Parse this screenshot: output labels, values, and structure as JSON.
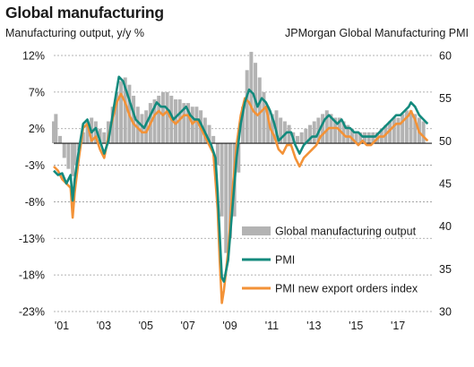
{
  "chart_data": {
    "type": "line",
    "title": "Global manufacturing",
    "left_axis_label": "Manufacturing output, y/y %",
    "right_axis_label": "JPMorgan Global Manufacturing PMI",
    "left_ylim": [
      -23,
      12
    ],
    "left_ticks": [
      "12%",
      "7%",
      "2%",
      "-3%",
      "-8%",
      "-13%",
      "-18%",
      "-23%"
    ],
    "left_tick_values": [
      12,
      7,
      2,
      -3,
      -8,
      -13,
      -18,
      -23
    ],
    "right_ylim": [
      30,
      60
    ],
    "right_ticks": [
      "60",
      "55",
      "50",
      "45",
      "40",
      "35",
      "30"
    ],
    "right_tick_values": [
      60,
      55,
      50,
      45,
      40,
      35,
      30
    ],
    "xlim": [
      2001.0,
      2019.0
    ],
    "x_ticks": [
      "'01",
      "'03",
      "'05",
      "'07",
      "'09",
      "'11",
      "'13",
      "'15",
      "'17"
    ],
    "x_tick_values": [
      2001,
      2003,
      2005,
      2007,
      2009,
      2011,
      2013,
      2015,
      2017
    ],
    "gridlines": "horizontal dashed",
    "legend_position": "lower-right",
    "series": [
      {
        "name": "Global manufacturing output",
        "kind": "bar",
        "axis": "left",
        "color": "#b3b3b3",
        "points": [
          [
            2001.0,
            3.0
          ],
          [
            2001.1,
            4.0
          ],
          [
            2001.3,
            1.0
          ],
          [
            2001.5,
            -2.0
          ],
          [
            2001.7,
            -3.5
          ],
          [
            2001.9,
            -4.5
          ],
          [
            2002.0,
            -3.0
          ],
          [
            2002.2,
            -1.0
          ],
          [
            2002.4,
            1.5
          ],
          [
            2002.6,
            3.0
          ],
          [
            2002.8,
            3.5
          ],
          [
            2003.0,
            3.0
          ],
          [
            2003.2,
            2.0
          ],
          [
            2003.4,
            1.5
          ],
          [
            2003.6,
            3.0
          ],
          [
            2003.8,
            5.0
          ],
          [
            2004.0,
            7.0
          ],
          [
            2004.2,
            8.5
          ],
          [
            2004.4,
            9.0
          ],
          [
            2004.6,
            8.0
          ],
          [
            2004.8,
            6.5
          ],
          [
            2005.0,
            5.0
          ],
          [
            2005.2,
            4.0
          ],
          [
            2005.4,
            4.5
          ],
          [
            2005.6,
            5.5
          ],
          [
            2005.8,
            6.0
          ],
          [
            2006.0,
            6.5
          ],
          [
            2006.2,
            7.0
          ],
          [
            2006.4,
            7.0
          ],
          [
            2006.6,
            6.5
          ],
          [
            2006.8,
            6.0
          ],
          [
            2007.0,
            6.0
          ],
          [
            2007.2,
            5.5
          ],
          [
            2007.4,
            5.5
          ],
          [
            2007.6,
            5.0
          ],
          [
            2007.8,
            5.0
          ],
          [
            2008.0,
            4.5
          ],
          [
            2008.2,
            3.5
          ],
          [
            2008.4,
            2.5
          ],
          [
            2008.6,
            1.0
          ],
          [
            2008.8,
            -3.0
          ],
          [
            2009.0,
            -10.0
          ],
          [
            2009.2,
            -15.0
          ],
          [
            2009.4,
            -13.0
          ],
          [
            2009.6,
            -10.0
          ],
          [
            2009.8,
            -4.0
          ],
          [
            2010.0,
            5.0
          ],
          [
            2010.2,
            10.0
          ],
          [
            2010.4,
            12.5
          ],
          [
            2010.6,
            11.0
          ],
          [
            2010.8,
            9.0
          ],
          [
            2011.0,
            7.0
          ],
          [
            2011.2,
            5.0
          ],
          [
            2011.4,
            4.0
          ],
          [
            2011.6,
            4.5
          ],
          [
            2011.8,
            3.5
          ],
          [
            2012.0,
            3.0
          ],
          [
            2012.2,
            2.5
          ],
          [
            2012.4,
            1.5
          ],
          [
            2012.6,
            1.0
          ],
          [
            2012.8,
            1.5
          ],
          [
            2013.0,
            2.0
          ],
          [
            2013.2,
            2.5
          ],
          [
            2013.4,
            3.0
          ],
          [
            2013.6,
            3.5
          ],
          [
            2013.8,
            4.0
          ],
          [
            2014.0,
            4.5
          ],
          [
            2014.2,
            4.0
          ],
          [
            2014.4,
            3.5
          ],
          [
            2014.6,
            3.5
          ],
          [
            2014.8,
            3.0
          ],
          [
            2015.0,
            2.5
          ],
          [
            2015.2,
            2.0
          ],
          [
            2015.4,
            1.5
          ],
          [
            2015.6,
            1.5
          ],
          [
            2015.8,
            1.5
          ],
          [
            2016.0,
            1.5
          ],
          [
            2016.2,
            1.5
          ],
          [
            2016.4,
            1.5
          ],
          [
            2016.6,
            2.0
          ],
          [
            2016.8,
            2.5
          ],
          [
            2017.0,
            3.0
          ],
          [
            2017.2,
            3.5
          ],
          [
            2017.4,
            3.5
          ],
          [
            2017.6,
            4.0
          ],
          [
            2017.8,
            4.5
          ],
          [
            2018.0,
            4.5
          ],
          [
            2018.2,
            4.0
          ],
          [
            2018.4,
            3.5
          ],
          [
            2018.6,
            3.0
          ]
        ]
      },
      {
        "name": "PMI",
        "kind": "line",
        "axis": "right",
        "color": "#138a7d",
        "points": [
          [
            2001.0,
            46.5
          ],
          [
            2001.2,
            46.0
          ],
          [
            2001.4,
            46.2
          ],
          [
            2001.6,
            45.0
          ],
          [
            2001.8,
            46.0
          ],
          [
            2001.9,
            43.0
          ],
          [
            2002.0,
            45.5
          ],
          [
            2002.2,
            49.0
          ],
          [
            2002.4,
            52.0
          ],
          [
            2002.6,
            52.5
          ],
          [
            2002.8,
            51.0
          ],
          [
            2003.0,
            51.5
          ],
          [
            2003.2,
            50.0
          ],
          [
            2003.4,
            48.5
          ],
          [
            2003.6,
            50.0
          ],
          [
            2003.8,
            53.0
          ],
          [
            2004.0,
            56.0
          ],
          [
            2004.1,
            57.5
          ],
          [
            2004.3,
            57.0
          ],
          [
            2004.5,
            55.5
          ],
          [
            2004.7,
            54.0
          ],
          [
            2004.9,
            52.5
          ],
          [
            2005.1,
            52.0
          ],
          [
            2005.3,
            51.5
          ],
          [
            2005.5,
            52.5
          ],
          [
            2005.7,
            53.5
          ],
          [
            2005.9,
            54.5
          ],
          [
            2006.1,
            54.0
          ],
          [
            2006.3,
            54.0
          ],
          [
            2006.5,
            53.5
          ],
          [
            2006.7,
            52.5
          ],
          [
            2006.9,
            53.0
          ],
          [
            2007.1,
            53.5
          ],
          [
            2007.3,
            54.0
          ],
          [
            2007.5,
            53.0
          ],
          [
            2007.7,
            52.5
          ],
          [
            2007.9,
            52.5
          ],
          [
            2008.1,
            51.5
          ],
          [
            2008.3,
            50.5
          ],
          [
            2008.5,
            49.5
          ],
          [
            2008.7,
            48.0
          ],
          [
            2008.8,
            44.0
          ],
          [
            2008.9,
            39.0
          ],
          [
            2009.0,
            34.0
          ],
          [
            2009.1,
            33.5
          ],
          [
            2009.3,
            36.0
          ],
          [
            2009.5,
            42.0
          ],
          [
            2009.7,
            48.0
          ],
          [
            2009.9,
            52.0
          ],
          [
            2010.1,
            54.5
          ],
          [
            2010.3,
            56.0
          ],
          [
            2010.5,
            55.5
          ],
          [
            2010.7,
            54.0
          ],
          [
            2010.9,
            55.0
          ],
          [
            2011.1,
            54.5
          ],
          [
            2011.3,
            53.5
          ],
          [
            2011.5,
            52.0
          ],
          [
            2011.7,
            50.0
          ],
          [
            2011.9,
            50.5
          ],
          [
            2012.1,
            51.0
          ],
          [
            2012.3,
            51.0
          ],
          [
            2012.5,
            49.5
          ],
          [
            2012.7,
            48.5
          ],
          [
            2012.9,
            49.5
          ],
          [
            2013.1,
            50.0
          ],
          [
            2013.3,
            50.5
          ],
          [
            2013.5,
            50.5
          ],
          [
            2013.7,
            51.5
          ],
          [
            2013.9,
            52.5
          ],
          [
            2014.1,
            53.0
          ],
          [
            2014.3,
            52.5
          ],
          [
            2014.5,
            52.0
          ],
          [
            2014.7,
            52.5
          ],
          [
            2014.9,
            51.5
          ],
          [
            2015.1,
            51.5
          ],
          [
            2015.3,
            51.0
          ],
          [
            2015.5,
            51.0
          ],
          [
            2015.7,
            50.5
          ],
          [
            2015.9,
            50.5
          ],
          [
            2016.1,
            50.5
          ],
          [
            2016.3,
            50.5
          ],
          [
            2016.5,
            51.0
          ],
          [
            2016.7,
            51.5
          ],
          [
            2016.9,
            52.0
          ],
          [
            2017.1,
            52.5
          ],
          [
            2017.3,
            53.0
          ],
          [
            2017.5,
            53.0
          ],
          [
            2017.7,
            53.5
          ],
          [
            2017.9,
            54.0
          ],
          [
            2018.0,
            54.5
          ],
          [
            2018.2,
            54.0
          ],
          [
            2018.4,
            53.0
          ],
          [
            2018.6,
            52.5
          ],
          [
            2018.8,
            52.0
          ]
        ]
      },
      {
        "name": "PMI new export orders index",
        "kind": "line",
        "axis": "right",
        "color": "#f39237",
        "points": [
          [
            2001.0,
            47.0
          ],
          [
            2001.2,
            46.5
          ],
          [
            2001.4,
            45.5
          ],
          [
            2001.6,
            45.0
          ],
          [
            2001.8,
            44.5
          ],
          [
            2001.9,
            41.0
          ],
          [
            2002.0,
            44.0
          ],
          [
            2002.2,
            48.0
          ],
          [
            2002.4,
            51.5
          ],
          [
            2002.6,
            52.0
          ],
          [
            2002.8,
            50.0
          ],
          [
            2003.0,
            50.5
          ],
          [
            2003.2,
            49.0
          ],
          [
            2003.4,
            48.0
          ],
          [
            2003.6,
            50.5
          ],
          [
            2003.8,
            52.5
          ],
          [
            2004.0,
            54.5
          ],
          [
            2004.2,
            55.5
          ],
          [
            2004.4,
            54.5
          ],
          [
            2004.6,
            53.0
          ],
          [
            2004.8,
            52.0
          ],
          [
            2005.0,
            51.5
          ],
          [
            2005.2,
            51.0
          ],
          [
            2005.4,
            51.0
          ],
          [
            2005.6,
            52.0
          ],
          [
            2005.8,
            53.0
          ],
          [
            2006.0,
            53.5
          ],
          [
            2006.2,
            53.0
          ],
          [
            2006.4,
            53.5
          ],
          [
            2006.6,
            52.5
          ],
          [
            2006.8,
            52.0
          ],
          [
            2007.0,
            52.5
          ],
          [
            2007.2,
            53.0
          ],
          [
            2007.4,
            53.0
          ],
          [
            2007.6,
            52.0
          ],
          [
            2007.8,
            52.5
          ],
          [
            2008.0,
            51.5
          ],
          [
            2008.2,
            50.5
          ],
          [
            2008.4,
            49.5
          ],
          [
            2008.6,
            48.5
          ],
          [
            2008.8,
            42.0
          ],
          [
            2008.9,
            36.0
          ],
          [
            2009.0,
            31.0
          ],
          [
            2009.1,
            32.5
          ],
          [
            2009.3,
            37.0
          ],
          [
            2009.5,
            44.0
          ],
          [
            2009.7,
            49.5
          ],
          [
            2009.9,
            53.0
          ],
          [
            2010.1,
            55.0
          ],
          [
            2010.3,
            54.5
          ],
          [
            2010.5,
            53.5
          ],
          [
            2010.7,
            53.0
          ],
          [
            2010.9,
            53.5
          ],
          [
            2011.1,
            54.0
          ],
          [
            2011.3,
            51.5
          ],
          [
            2011.5,
            50.5
          ],
          [
            2011.7,
            49.0
          ],
          [
            2011.9,
            48.5
          ],
          [
            2012.1,
            49.5
          ],
          [
            2012.3,
            49.5
          ],
          [
            2012.5,
            48.0
          ],
          [
            2012.7,
            47.0
          ],
          [
            2012.9,
            48.0
          ],
          [
            2013.1,
            48.5
          ],
          [
            2013.3,
            49.0
          ],
          [
            2013.5,
            49.5
          ],
          [
            2013.7,
            50.5
          ],
          [
            2013.9,
            51.0
          ],
          [
            2014.1,
            51.5
          ],
          [
            2014.3,
            51.5
          ],
          [
            2014.5,
            51.5
          ],
          [
            2014.7,
            51.0
          ],
          [
            2014.9,
            50.5
          ],
          [
            2015.1,
            50.5
          ],
          [
            2015.3,
            50.0
          ],
          [
            2015.5,
            49.5
          ],
          [
            2015.7,
            50.0
          ],
          [
            2015.9,
            49.5
          ],
          [
            2016.1,
            49.5
          ],
          [
            2016.3,
            50.0
          ],
          [
            2016.5,
            50.5
          ],
          [
            2016.7,
            50.5
          ],
          [
            2016.9,
            51.0
          ],
          [
            2017.1,
            51.5
          ],
          [
            2017.3,
            52.0
          ],
          [
            2017.5,
            52.0
          ],
          [
            2017.7,
            52.5
          ],
          [
            2017.9,
            53.0
          ],
          [
            2018.0,
            53.5
          ],
          [
            2018.2,
            52.5
          ],
          [
            2018.4,
            51.0
          ],
          [
            2018.6,
            50.5
          ],
          [
            2018.8,
            50.0
          ]
        ]
      }
    ]
  }
}
